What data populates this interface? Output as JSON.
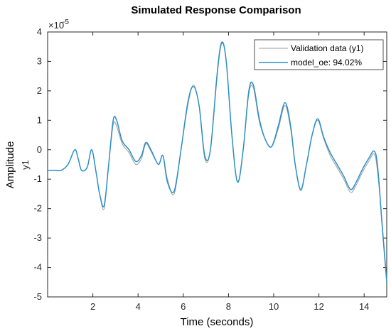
{
  "chart_data": {
    "type": "line",
    "title": "Simulated Response Comparison",
    "xlabel": "Time (seconds)",
    "ylabel": "Amplitude",
    "sublabel": "y1",
    "exponent_label": "×10",
    "exponent_power": "-5",
    "xlim": [
      0,
      15
    ],
    "ylim": [
      -5,
      4
    ],
    "xticks": [
      2,
      4,
      6,
      8,
      10,
      12,
      14
    ],
    "yticks": [
      -5,
      -4,
      -3,
      -2,
      -1,
      0,
      1,
      2,
      3,
      4
    ],
    "grid": false,
    "legend_position": "top-right",
    "series": [
      {
        "name": "Validation data (y1)",
        "color": "#9c9c9c",
        "x": [
          0,
          0.3,
          0.6,
          0.9,
          1.2,
          1.35,
          1.5,
          1.75,
          1.95,
          2.15,
          2.3,
          2.5,
          2.7,
          2.9,
          3.05,
          3.3,
          3.6,
          3.9,
          4.15,
          4.35,
          4.6,
          4.9,
          5.1,
          5.3,
          5.6,
          5.9,
          6.2,
          6.45,
          6.7,
          6.95,
          7.2,
          7.5,
          7.7,
          7.9,
          8.15,
          8.4,
          8.65,
          8.9,
          9.1,
          9.35,
          9.6,
          9.9,
          10.2,
          10.5,
          10.75,
          10.95,
          11.2,
          11.45,
          11.7,
          11.95,
          12.2,
          12.5,
          12.8,
          13.1,
          13.4,
          13.65,
          13.9,
          14.2,
          14.45,
          14.6,
          14.8,
          15
        ],
        "y": [
          -0.7,
          -0.7,
          -0.7,
          -0.5,
          0.0,
          -0.3,
          -0.7,
          -0.6,
          0.0,
          -0.8,
          -1.5,
          -2.0,
          -0.5,
          0.85,
          0.8,
          0.2,
          -0.1,
          -0.5,
          -0.3,
          0.2,
          -0.1,
          -0.5,
          -0.2,
          -1.0,
          -1.5,
          0.0,
          1.5,
          2.2,
          1.5,
          -0.3,
          0.0,
          2.5,
          3.6,
          3.0,
          0.5,
          -1.1,
          0.0,
          1.9,
          2.1,
          1.0,
          0.4,
          0.1,
          0.7,
          1.5,
          0.7,
          -0.5,
          -1.4,
          -0.5,
          0.5,
          1.0,
          0.4,
          -0.2,
          -0.6,
          -1.0,
          -1.45,
          -1.2,
          -0.8,
          -0.4,
          -0.15,
          -0.8,
          -2.5,
          -4.4
        ]
      },
      {
        "name": "model_oe: 94.02%",
        "color": "#2b8fc8",
        "x": [
          0,
          0.3,
          0.6,
          0.9,
          1.2,
          1.35,
          1.5,
          1.75,
          1.95,
          2.15,
          2.3,
          2.5,
          2.7,
          2.9,
          3.05,
          3.3,
          3.6,
          3.9,
          4.15,
          4.35,
          4.6,
          4.9,
          5.1,
          5.3,
          5.6,
          5.9,
          6.2,
          6.45,
          6.7,
          6.95,
          7.2,
          7.5,
          7.7,
          7.9,
          8.15,
          8.4,
          8.65,
          8.9,
          9.1,
          9.35,
          9.6,
          9.9,
          10.2,
          10.5,
          10.75,
          10.95,
          11.2,
          11.45,
          11.7,
          11.95,
          12.2,
          12.5,
          12.8,
          13.1,
          13.4,
          13.65,
          13.9,
          14.2,
          14.45,
          14.6,
          14.8,
          15
        ],
        "y": [
          -0.7,
          -0.7,
          -0.7,
          -0.5,
          0.0,
          -0.3,
          -0.7,
          -0.6,
          0.0,
          -0.8,
          -1.5,
          -1.9,
          -0.5,
          1.0,
          1.0,
          0.3,
          0.0,
          -0.4,
          -0.2,
          0.25,
          -0.05,
          -0.5,
          -0.2,
          -1.1,
          -1.4,
          0.0,
          1.6,
          2.15,
          1.5,
          -0.2,
          0.0,
          2.6,
          3.65,
          3.0,
          0.5,
          -1.1,
          0.0,
          2.0,
          2.2,
          1.1,
          0.4,
          0.1,
          0.8,
          1.6,
          0.8,
          -0.5,
          -1.35,
          -0.5,
          0.5,
          1.05,
          0.45,
          -0.1,
          -0.5,
          -0.9,
          -1.35,
          -1.1,
          -0.7,
          -0.3,
          -0.05,
          -0.6,
          -2.6,
          -4.5
        ]
      }
    ]
  }
}
